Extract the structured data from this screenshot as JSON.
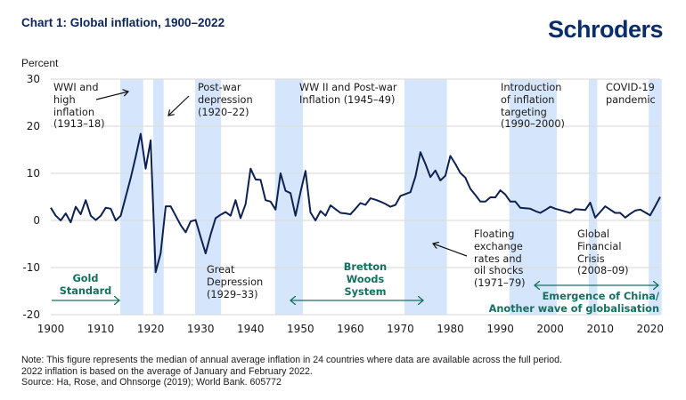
{
  "header": {
    "title": "Chart 1: Global inflation, 1900–2022",
    "logo_text": "Schroders"
  },
  "colors": {
    "line": "#0d2252",
    "band": "#d5e5fb",
    "green": "#157060",
    "grid": "#dddddd",
    "title": "#0b2559"
  },
  "chart_data": {
    "type": "line",
    "title": "Chart 1: Global inflation, 1900–2022",
    "xlabel": "",
    "ylabel": "Percent",
    "xlim": [
      1900,
      2022
    ],
    "ylim": [
      -20,
      30
    ],
    "yticks": [
      "30",
      "20",
      "10",
      "0",
      "-10",
      "-20"
    ],
    "ytick_values": [
      30,
      20,
      10,
      0,
      -10,
      -20
    ],
    "xticks": [
      "1900",
      "1910",
      "1920",
      "1930",
      "1940",
      "1950",
      "1960",
      "1970",
      "1980",
      "1990",
      "2000",
      "2010",
      "2020"
    ],
    "xtick_values": [
      1900,
      1910,
      1920,
      1930,
      1940,
      1950,
      1960,
      1970,
      1980,
      1990,
      2000,
      2010,
      2020
    ],
    "grid": true,
    "x_start": 1900,
    "series": [
      {
        "name": "Median annual inflation (24 countries)",
        "values": [
          2.7,
          1,
          0,
          1.5,
          -0.4,
          2.9,
          1.3,
          4.3,
          1,
          0.1,
          1,
          2.7,
          2.5,
          0,
          1,
          5,
          9,
          13.5,
          18.4,
          11,
          17,
          -11,
          -7,
          3,
          3,
          1,
          -1,
          -2.5,
          -0.2,
          0.1,
          -3.5,
          -7,
          -3,
          0.5,
          1.2,
          1.8,
          1,
          4.3,
          0.5,
          3.5,
          11,
          8.7,
          8.6,
          4.3,
          4,
          2.3,
          10,
          6.3,
          5.8,
          1,
          6,
          10.5,
          1.7,
          0,
          2,
          1,
          3.2,
          2.4,
          1.6,
          1.5,
          1.3,
          2.5,
          3.7,
          3.3,
          4.7,
          4.4,
          4,
          3.5,
          2.9,
          3.3,
          5.2,
          5.6,
          6,
          9.3,
          14.5,
          12,
          9.2,
          10.6,
          8.5,
          9.5,
          13.7,
          12,
          10.1,
          9.1,
          6.7,
          5.4,
          4,
          4,
          4.9,
          4.9,
          6.4,
          5.5,
          4,
          4,
          2.7,
          2.6,
          2.5,
          2,
          1.6,
          2.2,
          2.9,
          2.5,
          2.2,
          1.9,
          1.6,
          2.4,
          2.3,
          2.2,
          3.8,
          0.6,
          1.8,
          3,
          2.3,
          1.6,
          1.6,
          0.6,
          1.4,
          2.1,
          2.3,
          1.7,
          1.1,
          3,
          5
        ]
      }
    ],
    "shaded_periods": [
      {
        "name": "WWI",
        "range": [
          1913.9,
          1918.5
        ]
      },
      {
        "name": "Post-war depression",
        "range": [
          1920.5,
          1922.6
        ]
      },
      {
        "name": "Great Depression",
        "range": [
          1928.9,
          1934.1
        ]
      },
      {
        "name": "WWII",
        "range": [
          1944.9,
          1950.5
        ]
      },
      {
        "name": "Oil shocks",
        "range": [
          1970.8,
          1979.3
        ]
      },
      {
        "name": "Inflation targeting",
        "range": [
          1991.8,
          2001.3
        ]
      },
      {
        "name": "GFC",
        "range": [
          2007.7,
          2009.4
        ]
      },
      {
        "name": "COVID-19",
        "range": [
          2019.7,
          2022.3
        ]
      }
    ],
    "annotations": {
      "wwi": [
        "WWI and",
        "high",
        "inflation",
        "(1913–18)"
      ],
      "postwar": [
        "Post-war",
        "depression",
        "(1920–22)"
      ],
      "wwii": [
        "WW II and Post-war",
        "Inflation (1945–49)"
      ],
      "targeting": [
        "Introduction",
        "of inflation",
        "targeting",
        "(1990–2000)"
      ],
      "covid": [
        "COVID-19",
        "pandemic"
      ],
      "great_depression": [
        "Great",
        "Depression",
        "(1929–33)"
      ],
      "floating": [
        "Floating",
        "exchange",
        "rates and",
        "oil shocks",
        "(1971–79)"
      ],
      "gfc": [
        "Global",
        "Financial",
        "Crisis",
        "(2008–09)"
      ],
      "gold": [
        "Gold",
        "Standard"
      ],
      "bretton": [
        "Bretton",
        "Woods",
        "System"
      ],
      "china": [
        "Emergence of China/",
        "Another wave of globalisation"
      ]
    }
  },
  "notes": [
    "Note: This figure represents the median of annual average inflation in 24 countries where data are available across the full period.",
    "2022 inflation is based on the average of January and February 2022.",
    "Source: Ha, Rose, and Ohnsorge (2019); World Bank. 605772"
  ]
}
